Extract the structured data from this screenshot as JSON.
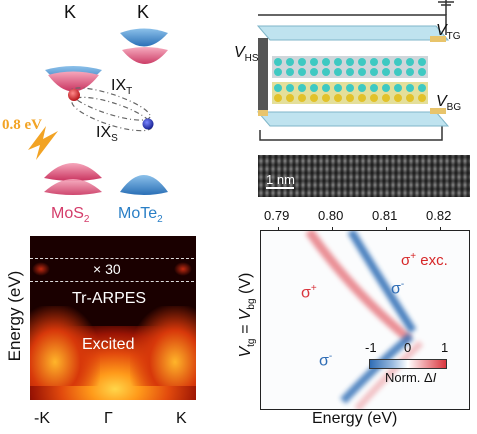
{
  "panel_a": {
    "valley_left": "K",
    "valley_right": "K",
    "interlayer_t": "IX",
    "interlayer_t_sub": "T",
    "interlayer_s": "IX",
    "interlayer_s_sub": "S",
    "photon_energy": "0.8 eV",
    "layer_left": "MoS",
    "layer_left_sub": "2",
    "layer_right": "MoTe",
    "layer_right_sub": "2",
    "colors": {
      "mos2": "#d43c6a",
      "mote2": "#2a7fc6",
      "photon": "#f2a324"
    }
  },
  "panel_b": {
    "ylabel": "Energy (eV)",
    "magnification": "× 30",
    "method": "Tr-ARPES",
    "state": "Excited",
    "xticks": [
      "-K",
      "Γ",
      "K"
    ]
  },
  "panel_c": {
    "v_hs": "V",
    "v_hs_sub": "HS",
    "v_tg": "V",
    "v_tg_sub": "TG",
    "v_bg": "V",
    "v_bg_sub": "BG",
    "scalebar": "1 nm"
  },
  "panel_d": {
    "xlabel": "Energy (eV)",
    "ylabel_main": "V",
    "ylabel_sub1": "tg",
    "ylabel_eq": " = V",
    "ylabel_sub2": "bg",
    "ylabel_unit": " (V)",
    "xticks": [
      "0.79",
      "0.80",
      "0.81",
      "0.82"
    ],
    "sigma_plus_label": "σ",
    "sigma_plus_sup": "+",
    "sigma_minus_label": "σ",
    "sigma_minus_sup": "-",
    "excitation_label": "σ",
    "excitation_sup": "+",
    "excitation_suffix": " exc.",
    "colorbar_ticks": [
      "-1",
      "0",
      "1"
    ],
    "colorbar_label": "Norm. Δ",
    "colorbar_label_italic": "I",
    "colors": {
      "negative": "#2f6db5",
      "positive": "#d9363e",
      "excitation": "#d62728"
    }
  }
}
